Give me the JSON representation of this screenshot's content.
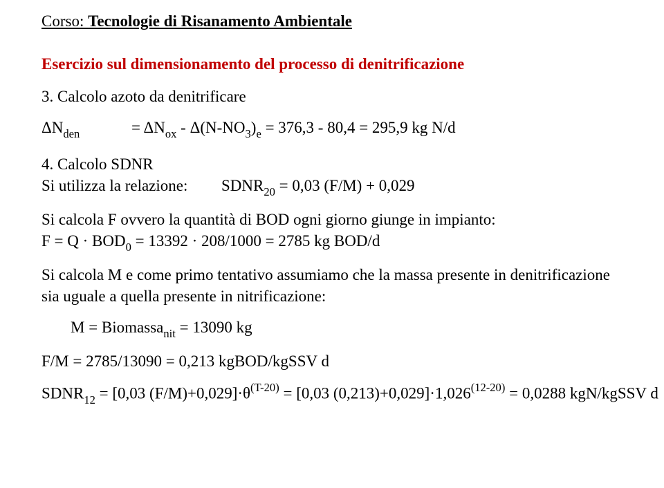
{
  "colors": {
    "body_text": "#000000",
    "accent_red": "#c00000",
    "background": "#ffffff"
  },
  "fonts": {
    "body_family": "Garamond",
    "body_size_pt": 17,
    "title_weight": "bold"
  },
  "header": {
    "course_label": "Corso: ",
    "course_title": "Tecnologie di Risanamento Ambientale"
  },
  "exercise_title": "Esercizio sul dimensionamento del processo di denitrificazione",
  "step3": {
    "heading": "3. Calcolo azoto da denitrificare",
    "lhs": "ΔN",
    "lhs_sub": "den",
    "rhs_pre": "= ΔN",
    "rhs_sub1": "ox",
    "rhs_mid": " - Δ(N-NO",
    "rhs_sub2": "3",
    "rhs_close": ")",
    "rhs_sub3": "e",
    "rhs_tail": " = 376,3 - 80,4 = 295,9 kg N/d"
  },
  "step4": {
    "heading": "4. Calcolo SDNR",
    "rel_label": "Si utilizza la relazione:",
    "rel_rhs_pre": "SDNR",
    "rel_rhs_sub": "20",
    "rel_rhs_tail": " = 0,03 (F/M) + 0,029",
    "f_intro": "Si calcola F ovvero la quantità di BOD ogni giorno giunge in impianto:",
    "f_eq_pre": " F = Q · BOD",
    "f_eq_sub": "0",
    "f_eq_tail": " = 13392 · 208/1000 = 2785 kg BOD/d",
    "m_intro": "Si calcola M e come primo tentativo assumiamo che la massa presente in denitrificazione sia uguale a quella presente in nitrificazione:",
    "m_eq_pre": "M = Biomassa",
    "m_eq_sub": "nit",
    "m_eq_tail": " = 13090 kg",
    "fm_eq": "F/M = 2785/13090 = 0,213 kgBOD/kgSSV d",
    "final_pre": "SDNR",
    "final_sub": "12",
    "final_mid1": " = [0,03 (F/M)+0,029]·θ",
    "final_sup1": "(T-20)",
    "final_mid2": " = [0,03 (0,213)+0,029]·1,026",
    "final_sup2": "(12-20)",
    "final_tail": " = 0,0288 kgN/kgSSV d"
  }
}
